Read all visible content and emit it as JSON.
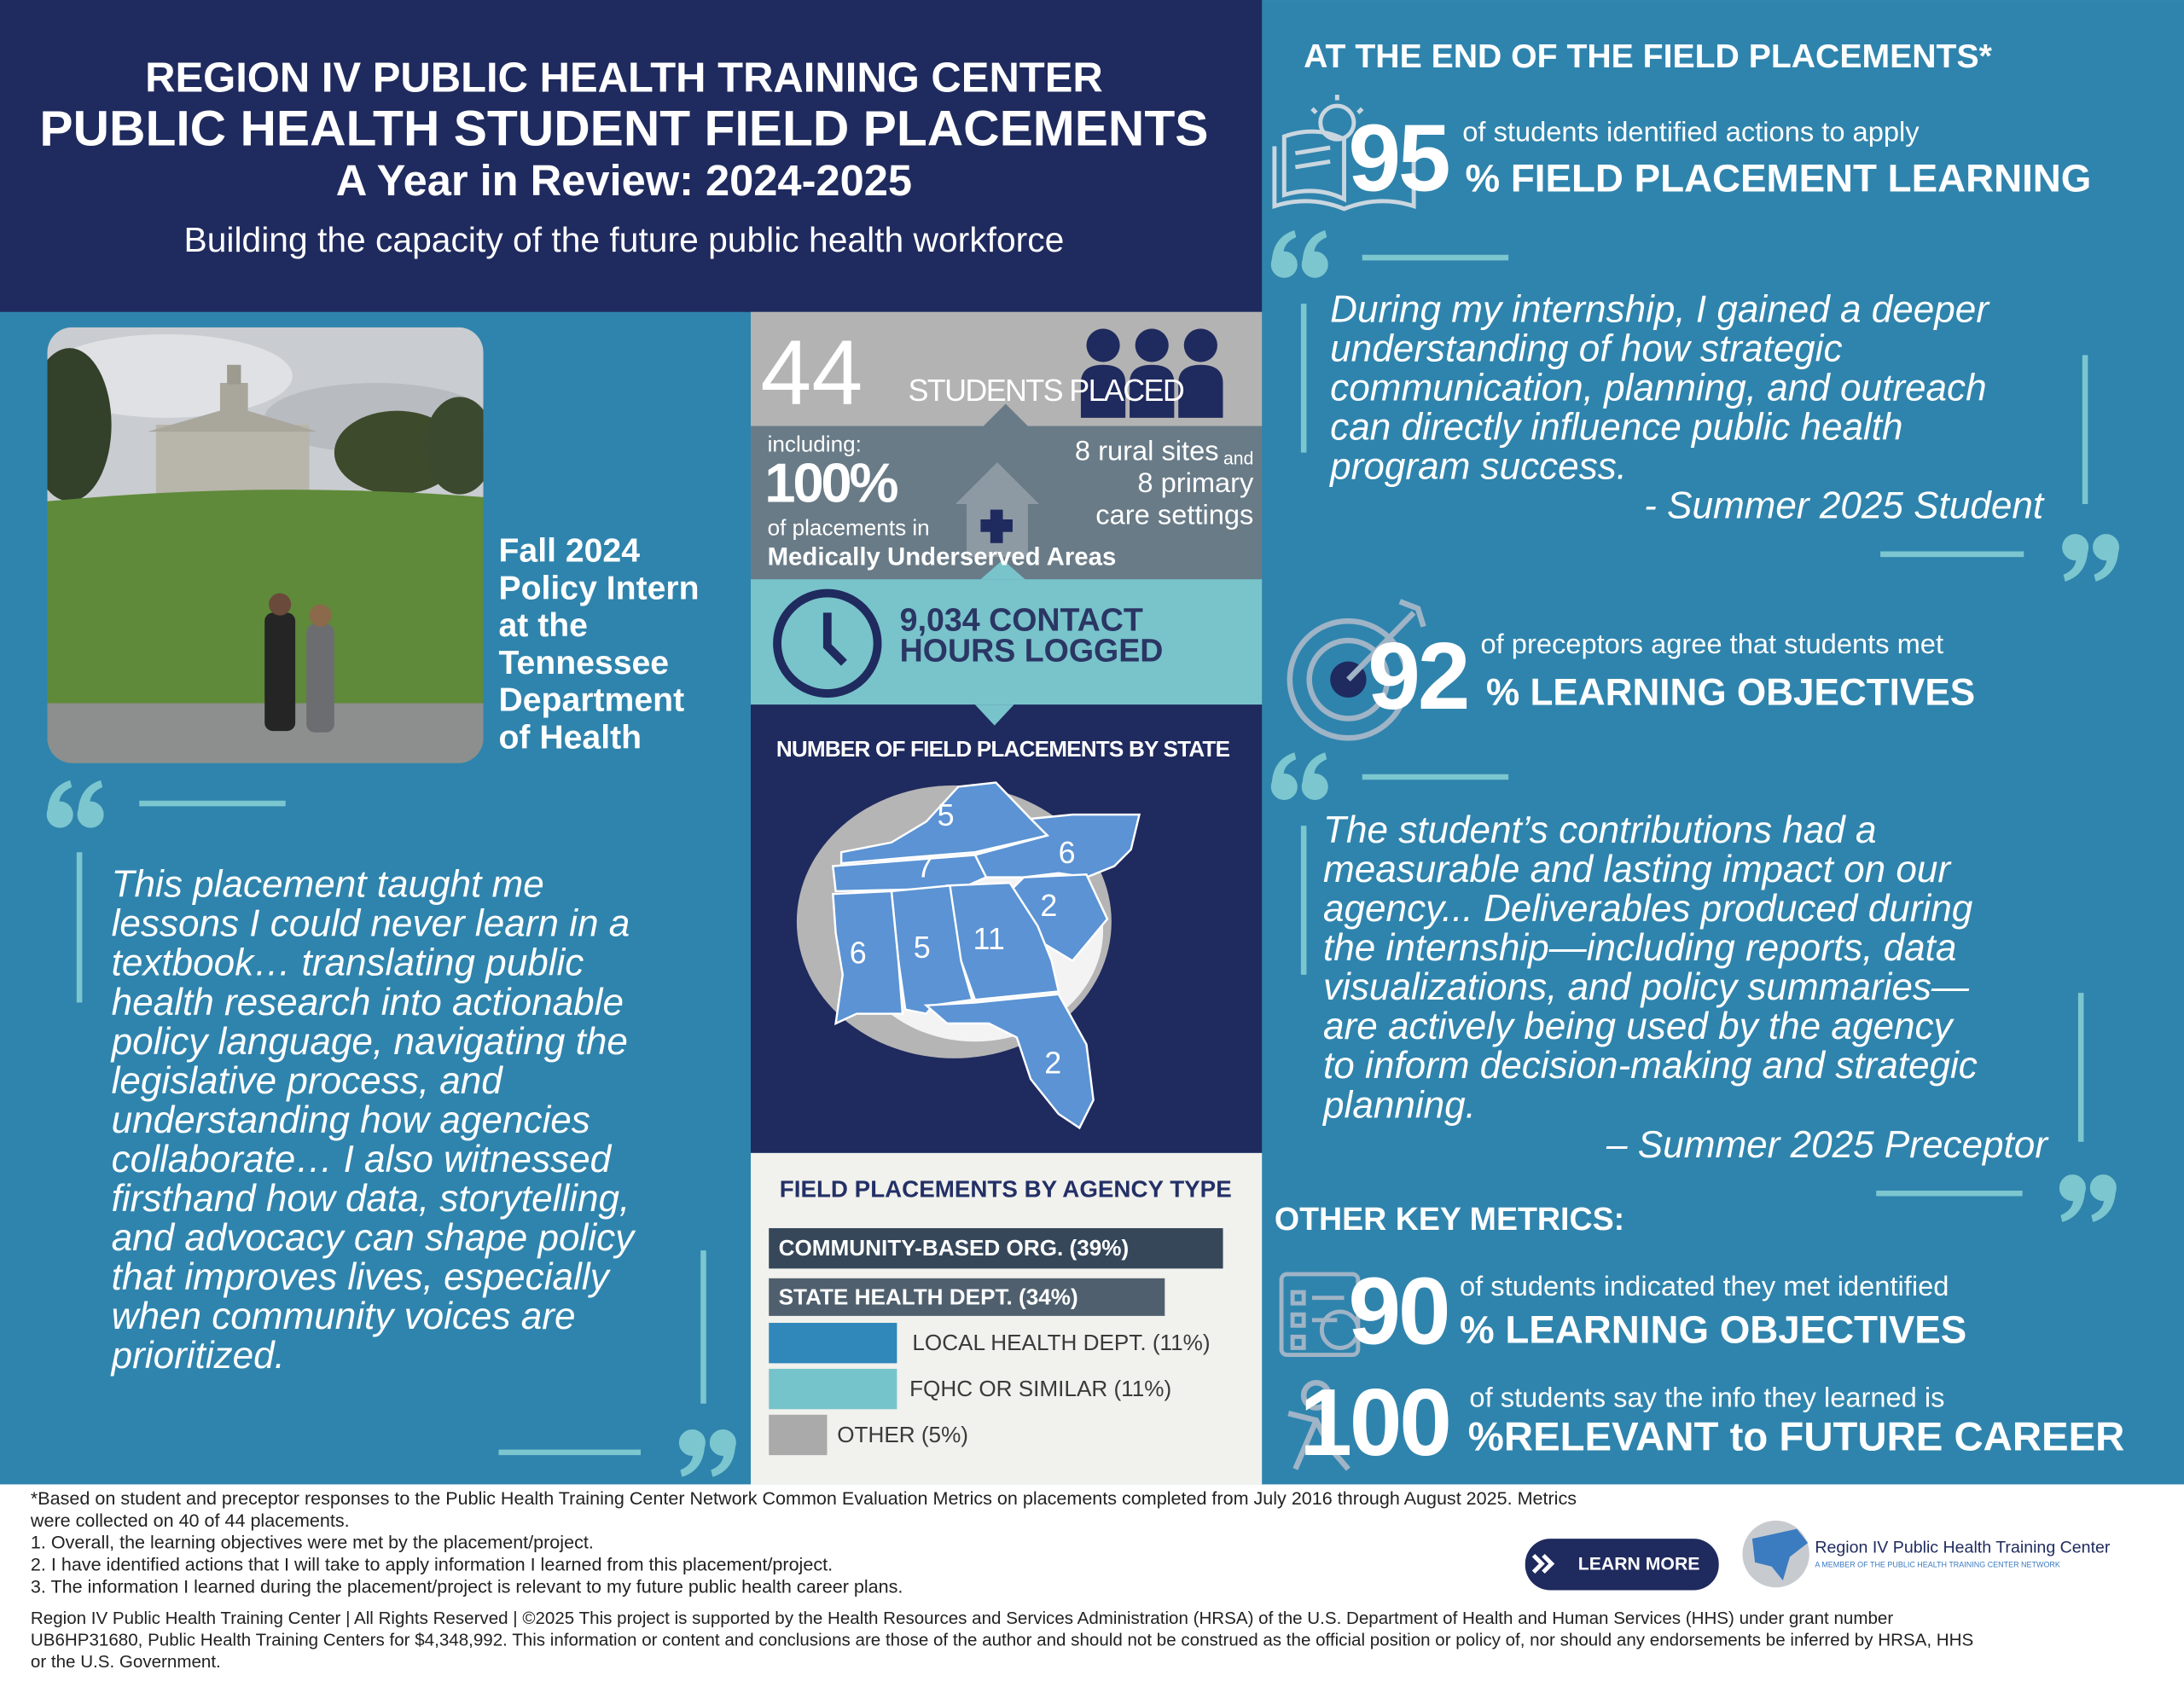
{
  "header": {
    "line1": "REGION IV PUBLIC HEALTH TRAINING CENTER",
    "line2": "PUBLIC HEALTH STUDENT FIELD PLACEMENTS",
    "line3": "A Year in Review: 2024-2025",
    "subtitle": "Building the capacity of the future public health workforce"
  },
  "photo_caption": [
    "Fall 2024",
    "Policy Intern",
    "at the",
    "Tennessee",
    "Department",
    "of Health"
  ],
  "left_quote": {
    "lines": [
      "This placement taught me",
      "lessons I could never learn in a",
      "textbook… translating public",
      "health research into actionable",
      "policy language, navigating the",
      "legislative process, and",
      "understanding how agencies",
      "collaborate… I also witnessed",
      "firsthand how data, storytelling,",
      "and advocacy can shape policy",
      "that improves lives, especially",
      "when community voices are",
      "prioritized."
    ]
  },
  "students": {
    "count": 44,
    "label": "STUDENTS PLACED"
  },
  "underserved": {
    "including": "including:",
    "percent": "100%",
    "of_placements": "of placements in",
    "areas": "Medically Underserved Areas",
    "rural": "8 rural sites",
    "and": "and",
    "primary": "8 primary",
    "care": "care settings"
  },
  "hours": {
    "lines": [
      "9,034 CONTACT",
      "HOURS LOGGED"
    ]
  },
  "state_map": {
    "title": "NUMBER OF FIELD PLACEMENTS BY STATE",
    "counts": [
      5,
      6,
      7,
      2,
      6,
      5,
      11,
      2
    ]
  },
  "agency_chart": {
    "title": "FIELD PLACEMENTS BY AGENCY TYPE",
    "categories": [
      "COMMUNITY-BASED ORG. (39%)",
      "STATE HEALTH DEPT. (34%)",
      "LOCAL HEALTH DEPT. (11%)",
      "FQHC OR SIMILAR (11%)",
      "OTHER (5%)"
    ],
    "values": [
      39,
      34,
      11,
      11,
      5
    ],
    "colors": [
      "#36475a",
      "#4f5f6d",
      "#2f87ba",
      "#76c4cb",
      "#aaaaaa"
    ]
  },
  "outcomes": {
    "heading": "AT THE END OF THE FIELD PLACEMENTS*",
    "other_heading": "OTHER KEY METRICS:",
    "metrics": [
      {
        "number": 95,
        "lead": "of students identified actions to apply",
        "label": "% FIELD PLACEMENT LEARNING"
      },
      {
        "number": 92,
        "lead": "of preceptors agree that students met",
        "label": "% LEARNING OBJECTIVES"
      },
      {
        "number": 90,
        "lead": "of students indicated they met identified",
        "label": "% LEARNING OBJECTIVES"
      },
      {
        "number": 100,
        "lead": "of students say the info they learned is",
        "label": "%RELEVANT to FUTURE CAREER"
      }
    ]
  },
  "quotes": [
    {
      "lines": [
        "During my internship, I gained a deeper",
        "understanding of how strategic",
        "communication, planning, and outreach",
        "can directly influence public health",
        "program success."
      ],
      "author": "- Summer 2025 Student"
    },
    {
      "lines": [
        "The student’s contributions had a",
        "measurable and lasting impact on our",
        "agency... Deliverables produced during",
        "the internship—including reports, data",
        "visualizations, and policy summaries—",
        "are actively being used by the agency",
        "to inform decision-making and strategic",
        "planning."
      ],
      "author": "– Summer 2025 Preceptor"
    }
  ],
  "footer": {
    "notes": [
      "*Based on student and preceptor responses to the Public Health Training Center Network Common Evaluation Metrics on placements completed from July 2016 through August 2025. Metrics",
      "were collected on 40 of 44 placements.",
      "1. Overall, the learning objectives were met by the placement/project.",
      "2. I have identified actions that I will take to apply information I learned from this placement/project.",
      "3. The information I learned during the placement/project is relevant to my future public health career plans."
    ],
    "copyright": [
      "Region IV Public Health Training Center | All Rights Reserved | ©2025 This project is supported by the Health Resources and Services Administration (HRSA) of the U.S. Department of Health and Human Services (HHS) under grant number",
      "UB6HP31680, Public Health Training Centers for $4,348,992. This information or content and conclusions are those of the author and should not be construed as the official position or policy of, nor should any endorsements be inferred by HRSA, HHS",
      "or the U.S. Government."
    ],
    "button": "LEARN MORE",
    "logo_name": "Region IV Public Health Training Center",
    "logo_tagline": "A MEMBER OF THE PUBLIC HEALTH TRAINING CENTER NETWORK"
  }
}
